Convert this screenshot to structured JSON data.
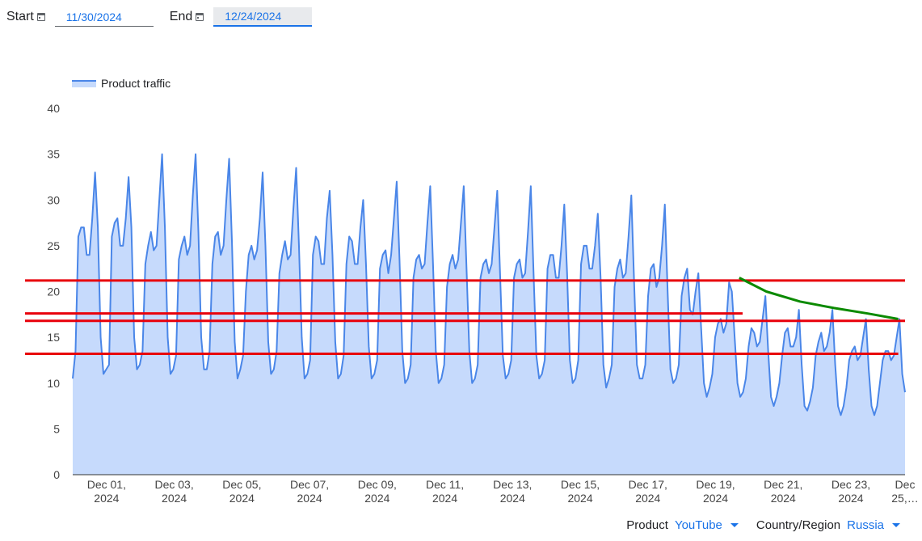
{
  "controls": {
    "start_label": "Start",
    "start_value": "11/30/2024",
    "end_label": "End",
    "end_value": "12/24/2024",
    "calendar_icon": "calendar-icon"
  },
  "filters": {
    "product_label": "Product",
    "product_value": "YouTube",
    "region_label": "Country/Region",
    "region_value": "Russia",
    "dropdown_icon": "triangle-down-icon"
  },
  "colors": {
    "line": "#4a86e8",
    "area": "#c6dafc",
    "annotation_red": "#e8000b",
    "annotation_green": "#0b8a00"
  },
  "chart_data": {
    "type": "area",
    "legend": "Product traffic",
    "legend_position": "top-left",
    "grid": false,
    "ylim": [
      0,
      40
    ],
    "y_ticks": [
      "0",
      "5",
      "10",
      "15",
      "20",
      "25",
      "30",
      "35",
      "40"
    ],
    "x_tick_labels": [
      [
        "Dec 01,",
        "2024"
      ],
      [
        "Dec 03,",
        "2024"
      ],
      [
        "Dec 05,",
        "2024"
      ],
      [
        "Dec 07,",
        "2024"
      ],
      [
        "Dec 09,",
        "2024"
      ],
      [
        "Dec 11,",
        "2024"
      ],
      [
        "Dec 13,",
        "2024"
      ],
      [
        "Dec 15,",
        "2024"
      ],
      [
        "Dec 17,",
        "2024"
      ],
      [
        "Dec 19,",
        "2024"
      ],
      [
        "Dec 21,",
        "2024"
      ],
      [
        "Dec 23,",
        "2024"
      ],
      [
        "Dec",
        "25,…"
      ]
    ],
    "xlim_days": [
      0,
      24.6
    ],
    "x_tick_days": [
      1,
      3,
      5,
      7,
      9,
      11,
      13,
      15,
      17,
      19,
      21,
      23,
      24.6
    ],
    "series": [
      {
        "name": "Product traffic",
        "values": [
          10.5,
          13.5,
          26.0,
          27.0,
          27.0,
          24.0,
          24.0,
          28.0,
          33.0,
          27.0,
          15.0,
          11.0,
          11.5,
          12.0,
          26.0,
          27.5,
          28.0,
          25.0,
          25.0,
          28.0,
          32.5,
          27.0,
          15.0,
          11.5,
          12.0,
          13.5,
          23.0,
          25.0,
          26.5,
          24.5,
          25.0,
          30.0,
          35.0,
          27.0,
          15.0,
          11.0,
          11.5,
          13.0,
          23.5,
          25.0,
          26.0,
          24.0,
          25.0,
          30.5,
          35.0,
          26.5,
          15.0,
          11.5,
          11.5,
          13.5,
          23.0,
          26.0,
          26.5,
          24.0,
          25.0,
          30.0,
          34.5,
          25.5,
          14.5,
          10.5,
          11.5,
          13.0,
          20.0,
          24.0,
          25.0,
          23.5,
          24.5,
          28.0,
          33.0,
          25.0,
          14.5,
          11.0,
          11.5,
          13.5,
          22.0,
          24.0,
          25.5,
          23.5,
          24.0,
          29.0,
          33.5,
          25.0,
          15.0,
          10.5,
          11.0,
          12.5,
          24.0,
          26.0,
          25.5,
          23.0,
          23.0,
          28.0,
          31.0,
          24.0,
          14.5,
          10.5,
          11.0,
          13.0,
          23.0,
          26.0,
          25.5,
          23.0,
          23.0,
          27.0,
          30.0,
          23.0,
          14.0,
          10.5,
          11.0,
          12.5,
          22.5,
          24.0,
          24.5,
          22.0,
          24.0,
          28.0,
          32.0,
          23.5,
          13.5,
          10.0,
          10.5,
          12.0,
          21.5,
          23.5,
          24.0,
          22.5,
          23.0,
          27.5,
          31.5,
          23.0,
          13.5,
          10.0,
          10.5,
          12.0,
          20.5,
          23.0,
          24.0,
          22.5,
          23.5,
          27.5,
          31.5,
          22.5,
          13.5,
          10.0,
          10.5,
          12.0,
          21.5,
          23.0,
          23.5,
          22.0,
          23.0,
          27.0,
          31.0,
          22.0,
          13.0,
          10.5,
          11.0,
          12.5,
          21.5,
          23.0,
          23.5,
          21.5,
          22.0,
          26.5,
          31.5,
          22.0,
          13.0,
          10.5,
          11.0,
          12.5,
          22.5,
          24.0,
          24.0,
          21.5,
          21.5,
          25.0,
          29.5,
          22.0,
          12.5,
          10.0,
          10.5,
          12.5,
          23.0,
          25.0,
          25.0,
          22.5,
          22.5,
          25.0,
          28.5,
          21.5,
          12.0,
          9.5,
          10.5,
          12.0,
          20.5,
          22.5,
          23.5,
          21.5,
          22.0,
          26.0,
          30.5,
          21.0,
          12.0,
          10.5,
          10.5,
          12.0,
          19.5,
          22.5,
          23.0,
          20.5,
          21.5,
          25.0,
          29.5,
          20.0,
          11.5,
          10.0,
          10.5,
          12.0,
          19.5,
          21.5,
          22.5,
          18.0,
          17.5,
          20.0,
          22.0,
          16.0,
          10.0,
          8.5,
          9.5,
          11.0,
          15.0,
          16.5,
          17.0,
          15.5,
          16.5,
          21.0,
          20.0,
          15.0,
          10.0,
          8.5,
          9.0,
          10.5,
          14.0,
          16.0,
          15.5,
          14.0,
          14.5,
          17.0,
          19.5,
          13.5,
          8.5,
          7.5,
          8.5,
          10.0,
          13.0,
          15.5,
          16.0,
          14.0,
          14.0,
          15.0,
          18.0,
          12.0,
          7.5,
          7.0,
          8.0,
          9.5,
          13.0,
          14.5,
          15.5,
          13.5,
          14.0,
          15.5,
          18.0,
          12.0,
          7.5,
          6.5,
          7.5,
          9.5,
          12.5,
          13.5,
          14.0,
          12.5,
          13.0,
          15.0,
          17.0,
          11.5,
          7.5,
          6.5,
          7.5,
          10.0,
          12.5,
          13.5,
          13.5,
          12.5,
          13.0,
          15.0,
          17.0,
          11.0,
          9.0
        ]
      }
    ],
    "annotations": {
      "horizontal_lines": [
        {
          "y": 21.2,
          "x_end_day": 24.6,
          "color": "#e8000b"
        },
        {
          "y": 17.6,
          "x_end_day": 19.8,
          "color": "#e8000b"
        },
        {
          "y": 16.8,
          "x_end_day": 24.6,
          "color": "#e8000b"
        },
        {
          "y": 13.2,
          "x_end_day": 24.4,
          "color": "#e8000b"
        }
      ],
      "trend_curve": {
        "color": "#0b8a00",
        "points": [
          [
            19.7,
            21.5
          ],
          [
            20.5,
            20.0
          ],
          [
            21.5,
            18.9
          ],
          [
            22.5,
            18.2
          ],
          [
            23.5,
            17.6
          ],
          [
            24.4,
            17.0
          ]
        ]
      }
    }
  }
}
